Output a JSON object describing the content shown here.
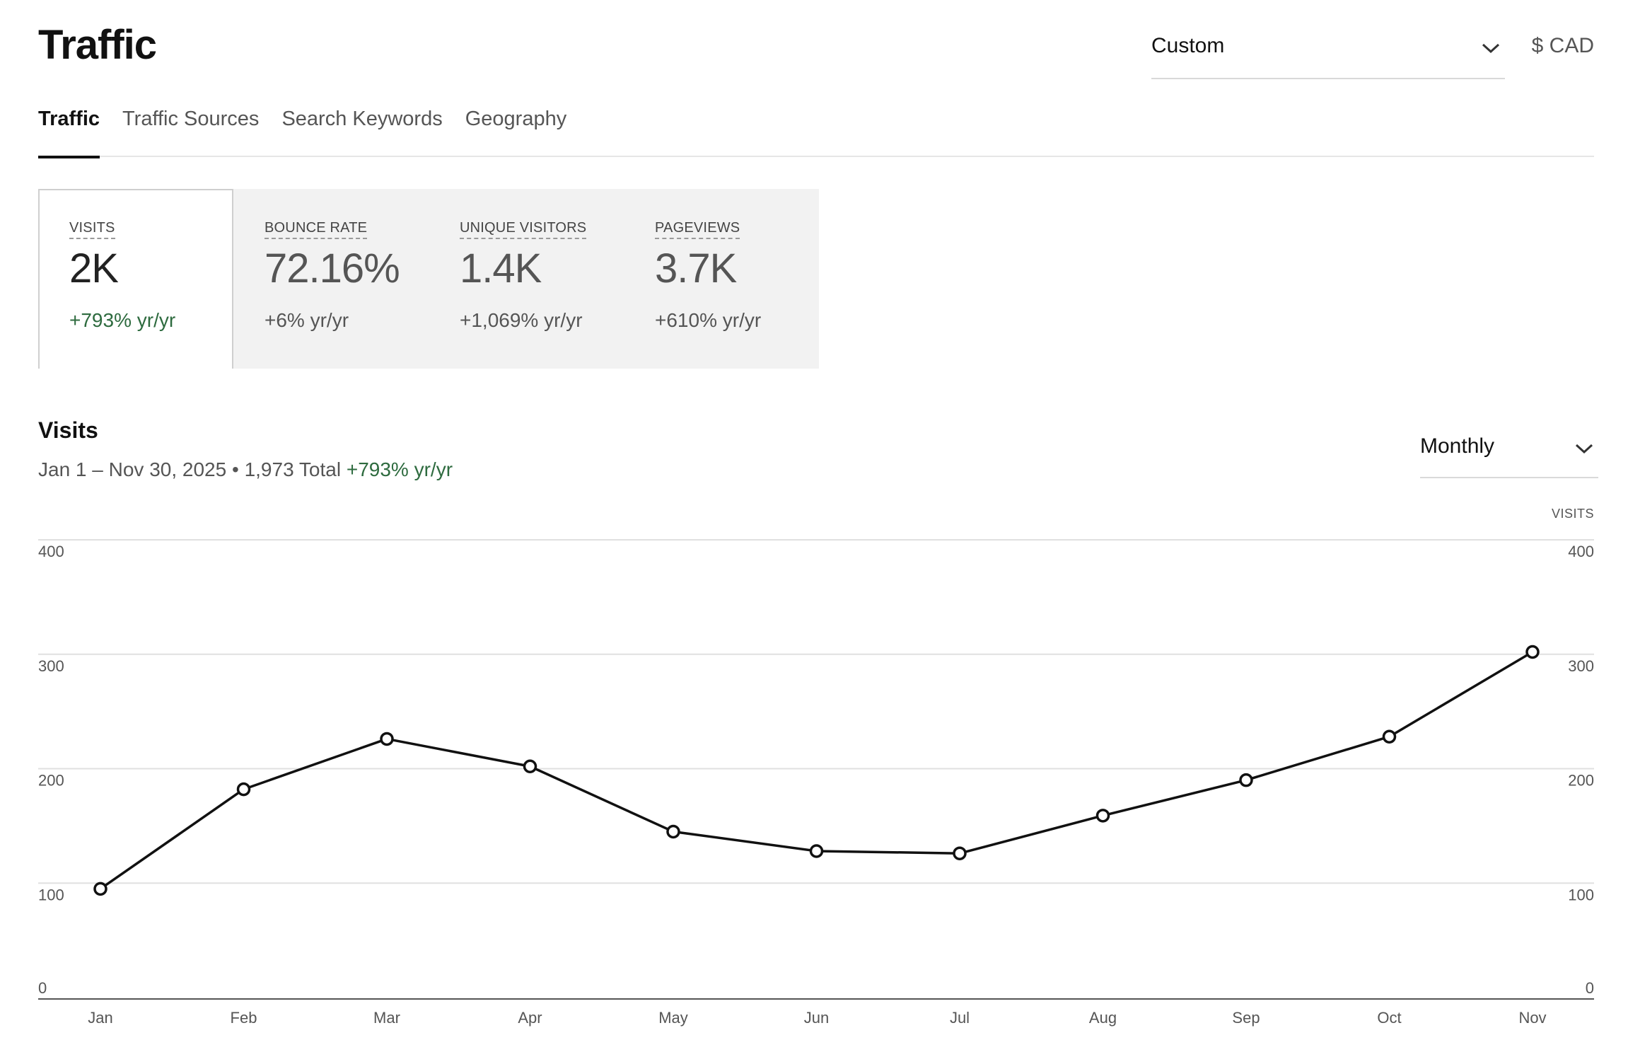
{
  "header": {
    "title": "Traffic",
    "range_select": "Custom",
    "currency": "$ CAD"
  },
  "tabs": [
    {
      "label": "Traffic",
      "active": true
    },
    {
      "label": "Traffic Sources",
      "active": false
    },
    {
      "label": "Search Keywords",
      "active": false
    },
    {
      "label": "Geography",
      "active": false
    }
  ],
  "metrics": [
    {
      "label": "VISITS",
      "value": "2K",
      "change": "+793% yr/yr",
      "active": true
    },
    {
      "label": "BOUNCE RATE",
      "value": "72.16%",
      "change": "+6% yr/yr",
      "active": false
    },
    {
      "label": "UNIQUE VISITORS",
      "value": "1.4K",
      "change": "+1,069% yr/yr",
      "active": false
    },
    {
      "label": "PAGEVIEWS",
      "value": "3.7K",
      "change": "+610% yr/yr",
      "active": false
    }
  ],
  "chart_section": {
    "title": "Visits",
    "date_range": "Jan 1 – Nov 30, 2025",
    "separator": "•",
    "total": "1,973 Total",
    "change": "+793% yr/yr",
    "period_select": "Monthly",
    "right_axis_label": "VISITS"
  },
  "colors": {
    "positive_change": "#2e6b3f",
    "line": "#111111",
    "gridline": "#e0e0e0"
  },
  "icons": {
    "range_select": "chevron-down-icon",
    "period_select": "chevron-down-icon"
  },
  "chart_data": {
    "type": "line",
    "categories": [
      "Jan",
      "Feb",
      "Mar",
      "Apr",
      "May",
      "Jun",
      "Jul",
      "Aug",
      "Sep",
      "Oct",
      "Nov"
    ],
    "series": [
      {
        "values": [
          95,
          182,
          226,
          202,
          145,
          128,
          126,
          159,
          190,
          228,
          302
        ]
      }
    ],
    "ylim": [
      0,
      400
    ],
    "yticks": [
      0,
      100,
      200,
      300,
      400
    ],
    "grid": true,
    "dual_y_axis": true
  }
}
